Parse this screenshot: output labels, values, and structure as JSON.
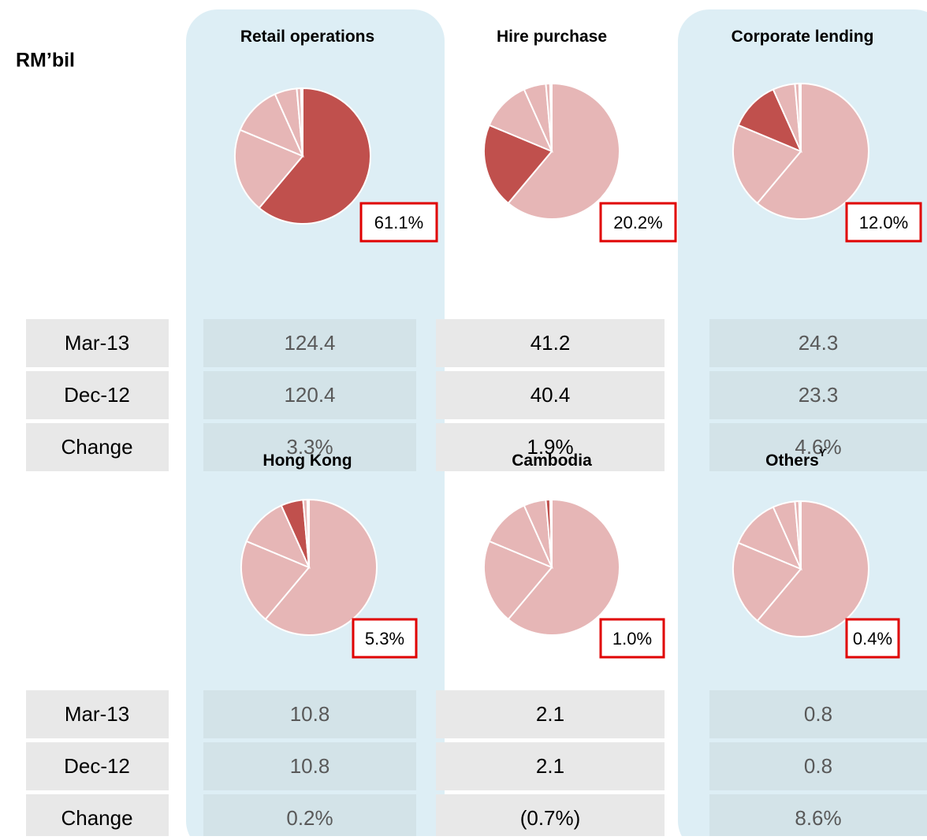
{
  "header": "RM’bil",
  "chart_data": {
    "type": "pie",
    "categories": [
      "Retail operations",
      "Hire purchase",
      "Corporate lending",
      "Hong Kong",
      "Cambodia",
      "Others"
    ],
    "category_superscripts": [
      null,
      null,
      null,
      null,
      null,
      "ϒ"
    ],
    "values": [
      61.1,
      20.2,
      12.0,
      5.3,
      1.0,
      0.4
    ],
    "value_labels": [
      "61.1%",
      "20.2%",
      "12.0%",
      "5.3%",
      "1.0%",
      "0.4%"
    ],
    "highlight_color": "#c0504d",
    "color": "#e6b6b6"
  },
  "table": {
    "row_labels": [
      "Mar-13",
      "Dec-12",
      "Change"
    ],
    "rows": [
      [
        124.4,
        41.2,
        24.3,
        10.8,
        2.1,
        0.8
      ],
      [
        120.4,
        40.4,
        23.3,
        10.8,
        2.1,
        0.8
      ],
      [
        "3.3%",
        "1.9%",
        "4.6%",
        "0.2%",
        "(0.7%)",
        "8.6%"
      ]
    ]
  }
}
